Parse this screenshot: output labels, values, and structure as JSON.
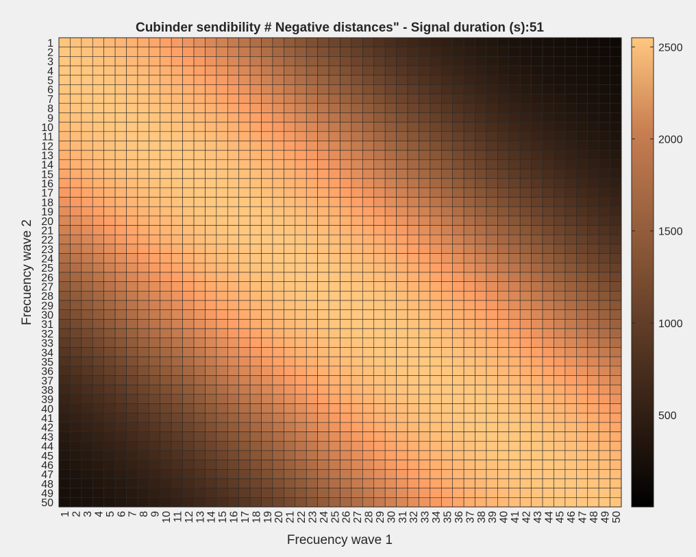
{
  "chart_data": {
    "type": "heatmap",
    "title": "Cubinder sendibility # Negative distances\" - Signal duration (s):51",
    "xlabel": "Frecuency wave 1",
    "ylabel": "Frecuency wave 2",
    "x_categories": [
      1,
      2,
      3,
      4,
      5,
      6,
      7,
      8,
      9,
      10,
      11,
      12,
      13,
      14,
      15,
      16,
      17,
      18,
      19,
      20,
      21,
      22,
      23,
      24,
      25,
      26,
      27,
      28,
      29,
      30,
      31,
      32,
      33,
      34,
      35,
      36,
      37,
      38,
      39,
      40,
      41,
      42,
      43,
      44,
      45,
      46,
      47,
      48,
      49,
      50
    ],
    "y_categories": [
      1,
      2,
      3,
      4,
      5,
      6,
      7,
      8,
      9,
      10,
      11,
      12,
      13,
      14,
      15,
      16,
      17,
      18,
      19,
      20,
      21,
      22,
      23,
      24,
      25,
      26,
      27,
      28,
      29,
      30,
      31,
      32,
      33,
      34,
      35,
      36,
      37,
      38,
      39,
      40,
      41,
      42,
      43,
      44,
      45,
      46,
      47,
      48,
      49,
      50
    ],
    "colormap": "copper",
    "colorbar": {
      "min": 0,
      "max": 2550,
      "ticks": [
        500,
        1000,
        1500,
        2000,
        2500
      ]
    },
    "value_model": {
      "peak_value": 2550,
      "ridge_offset": 3,
      "ridge_width": 18,
      "corner_floor": 80
    },
    "grid": true
  },
  "colors": {
    "background": "#f0f0f0",
    "grid_line": "#2a2a2a",
    "text": "#262626"
  }
}
